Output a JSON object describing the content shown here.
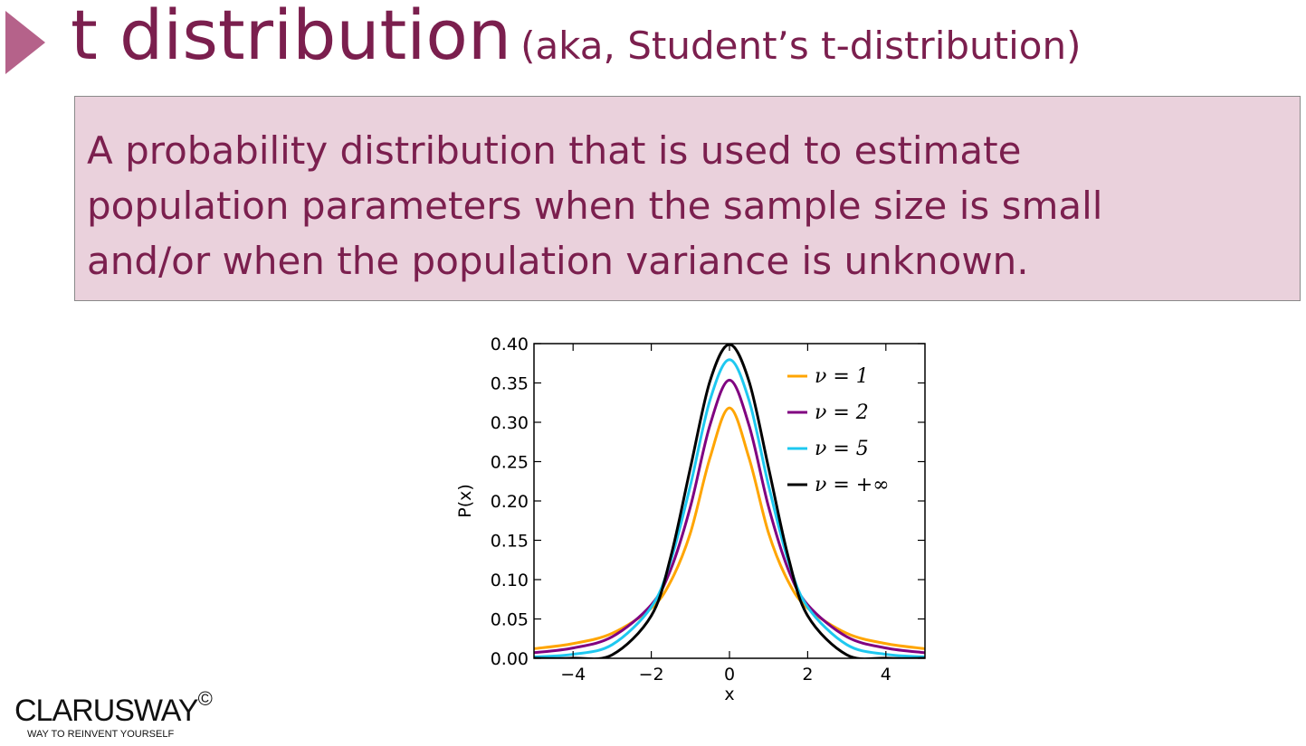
{
  "slide": {
    "title_main": "t distribution",
    "title_sub": "(aka, Student’s t-distribution)",
    "definition": "A probability distribution that is used to estimate\npopulation parameters when the sample size is small\nand/or when the population variance is unknown.",
    "accent_color": "#7b1f4e",
    "box_color": "#ead1dc"
  },
  "logo": {
    "name": "CLARUSWAY",
    "copyright": "©",
    "tagline": "WAY TO REINVENT YOURSELF"
  },
  "chart_data": {
    "type": "line",
    "xlabel": "x",
    "ylabel": "P(x)",
    "xlim": [
      -5,
      5
    ],
    "ylim": [
      0,
      0.4
    ],
    "x_ticks": [
      -4,
      -2,
      0,
      2,
      4
    ],
    "x_tick_labels": [
      "−4",
      "−2",
      "0",
      "2",
      "4"
    ],
    "y_ticks": [
      0,
      0.05,
      0.1,
      0.15,
      0.2,
      0.25,
      0.3,
      0.35,
      0.4
    ],
    "y_tick_labels": [
      "0.00",
      "0.05",
      "0.10",
      "0.15",
      "0.20",
      "0.25",
      "0.30",
      "0.35",
      "0.40"
    ],
    "grid": false,
    "legend_position": "top-right",
    "x": [
      -5,
      -4,
      -3,
      -2,
      -1.5,
      -1,
      -0.5,
      0,
      0.5,
      1,
      1.5,
      2,
      3,
      4,
      5
    ],
    "series": [
      {
        "name": "ν = 1",
        "color": "#ffa500",
        "values": [
          0.0122,
          0.0187,
          0.0318,
          0.0637,
          0.0979,
          0.1592,
          0.2546,
          0.3183,
          0.2546,
          0.1592,
          0.0979,
          0.0637,
          0.0318,
          0.0187,
          0.0122
        ]
      },
      {
        "name": "ν = 2",
        "color": "#800080",
        "values": [
          0.0071,
          0.0131,
          0.0274,
          0.068,
          0.1133,
          0.1925,
          0.2962,
          0.3536,
          0.2962,
          0.1925,
          0.1133,
          0.068,
          0.0274,
          0.0131,
          0.0071
        ]
      },
      {
        "name": "ν = 5",
        "color": "#1ec8f0",
        "values": [
          0.0018,
          0.0051,
          0.0173,
          0.0651,
          0.1245,
          0.2197,
          0.3279,
          0.3796,
          0.3279,
          0.2197,
          0.1245,
          0.0651,
          0.0173,
          0.0051,
          0.0018
        ]
      },
      {
        "name": "ν = +∞",
        "color": "#000000",
        "values": [
          1.5e-06,
          0.0001,
          0.0044,
          0.054,
          0.1295,
          0.242,
          0.3521,
          0.3989,
          0.3521,
          0.242,
          0.1295,
          0.054,
          0.0044,
          0.0001,
          1.5e-06
        ]
      }
    ]
  }
}
